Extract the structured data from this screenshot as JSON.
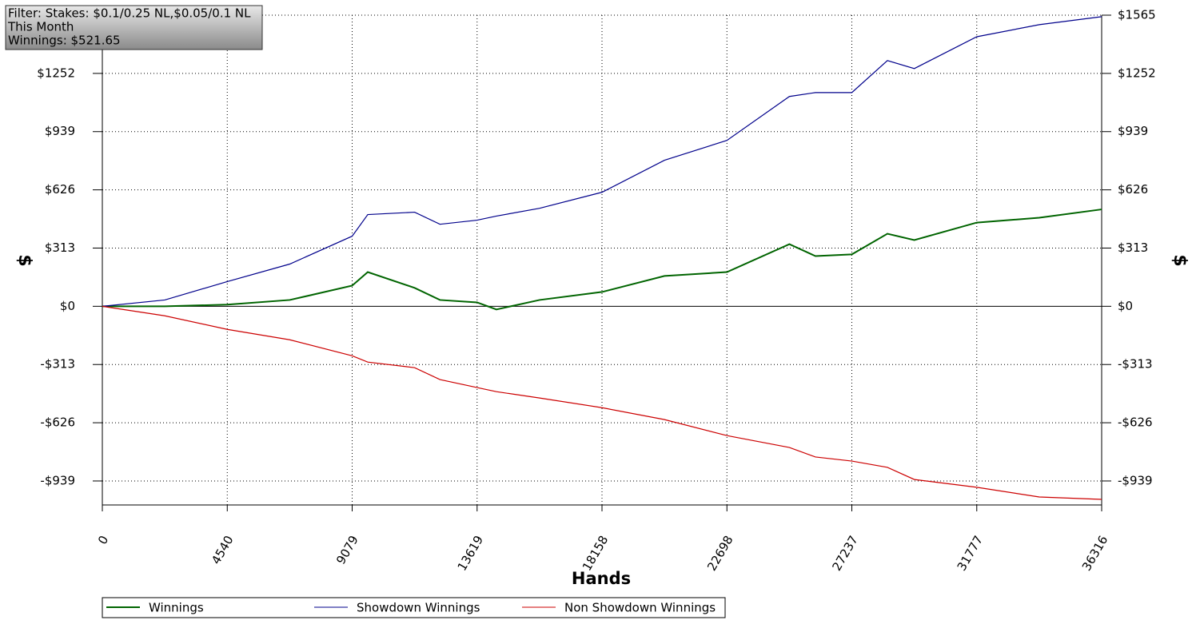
{
  "chart_data": {
    "type": "line",
    "annotations": [
      "Filter: Stakes: $0.1/0.25 NL,$0.05/0.1 NL",
      "This Month",
      "Winnings: $521.65"
    ],
    "xlabel": "Hands",
    "ylabel": "$",
    "y2label": "$",
    "x": [
      0,
      2270,
      4540,
      6810,
      9079,
      9646,
      11349,
      12270,
      13619,
      14320,
      15889,
      18158,
      20428,
      22698,
      24968,
      25915,
      27237,
      28530,
      29507,
      31777,
      34047,
      36316
    ],
    "series": [
      {
        "name": "Winnings",
        "color": "#006400",
        "values": [
          0,
          0,
          9,
          34,
          111,
          184,
          99,
          34,
          21,
          -17,
          34,
          77,
          163,
          184,
          334,
          270,
          279,
          390,
          356,
          450,
          476,
          521
        ]
      },
      {
        "name": "Showdown Winnings",
        "color": "#00008b",
        "values": [
          0,
          34,
          133,
          227,
          377,
          493,
          506,
          441,
          463,
          485,
          527,
          613,
          785,
          892,
          1128,
          1149,
          1149,
          1321,
          1278,
          1449,
          1514,
          1557
        ]
      },
      {
        "name": "Non Showdown Winnings",
        "color": "#cc0000",
        "values": [
          0,
          -51,
          -124,
          -180,
          -266,
          -300,
          -330,
          -394,
          -437,
          -459,
          -493,
          -545,
          -609,
          -695,
          -759,
          -810,
          -832,
          -866,
          -931,
          -973,
          -1025,
          -1038
        ]
      }
    ],
    "xlim": [
      0,
      36316
    ],
    "xticks": [
      0,
      4540,
      9079,
      13619,
      18158,
      22698,
      27237,
      31777,
      36316
    ],
    "ylim": [
      -1068,
      1565
    ],
    "yticks": [
      {
        "value": -939,
        "label": "-$939"
      },
      {
        "value": -626,
        "label": "-$626"
      },
      {
        "value": -313,
        "label": "-$313"
      },
      {
        "value": 0,
        "label": "$0"
      },
      {
        "value": 313,
        "label": "$313"
      },
      {
        "value": 626,
        "label": "$626"
      },
      {
        "value": 939,
        "label": "$939"
      },
      {
        "value": 1252,
        "label": "$1252"
      },
      {
        "value": 1565,
        "label": "$1565"
      }
    ],
    "y2lim": [
      -1068,
      1565
    ],
    "y2ticks": [
      {
        "value": -939,
        "label": "-$939"
      },
      {
        "value": -626,
        "label": "-$626"
      },
      {
        "value": -313,
        "label": "-$313"
      },
      {
        "value": 0,
        "label": "$0"
      },
      {
        "value": 313,
        "label": "$313"
      },
      {
        "value": 626,
        "label": "$626"
      },
      {
        "value": 939,
        "label": "$939"
      },
      {
        "value": 1252,
        "label": "$1252"
      },
      {
        "value": 1565,
        "label": "$1565"
      }
    ],
    "grid": true
  }
}
